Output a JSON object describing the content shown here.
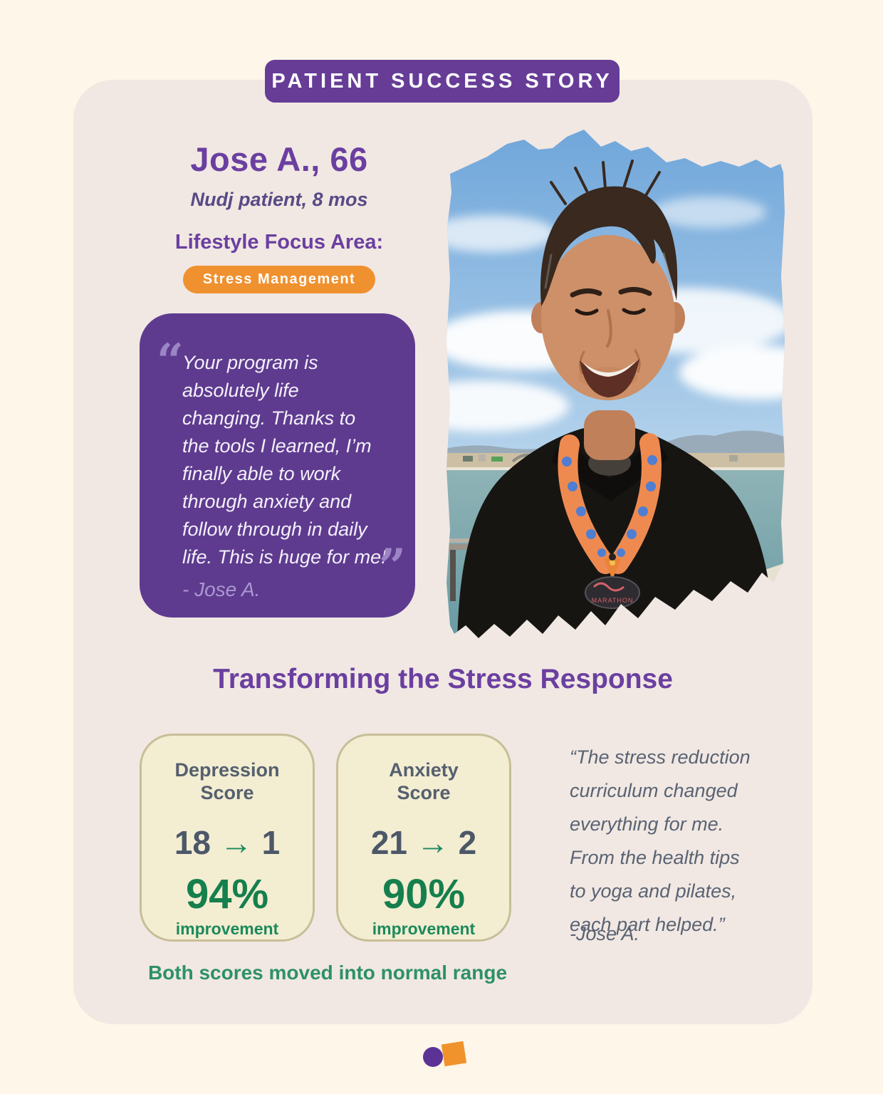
{
  "banner": {
    "label": "PATIENT SUCCESS STORY"
  },
  "patient": {
    "name": "Jose A., 66",
    "subtitle": "Nudj patient, 8 mos",
    "focus_label": "Lifestyle Focus Area:",
    "focus_badge": "Stress Management"
  },
  "testimonial": {
    "open_quote": "“",
    "close_quote": "”",
    "lines": [
      "Your program is",
      "absolutely life",
      "changing. Thanks to",
      "the tools I learned, I’m",
      "finally able to work",
      "through anxiety and",
      "follow through in daily",
      "life. This is huge for me!"
    ],
    "attribution": "- Jose A."
  },
  "photo": {
    "description": "Smiling man outdoors at a pier with blue sky, ocean and shoreline behind him, wearing a black fleece and an orange lanyard with blue palm trees holding a marathon medal",
    "medal_text": "MARATHON"
  },
  "results": {
    "heading": "Transforming the Stress Response",
    "cards": [
      {
        "title": "Depression\nScore",
        "title_line1": "Depression",
        "title_line2": "Score",
        "from": "18",
        "arrow": "→",
        "to": "1",
        "percent": "94%",
        "caption": "improvement"
      },
      {
        "title": "Anxiety\nScore",
        "title_line1": "Anxiety",
        "title_line2": "Score",
        "from": "21",
        "arrow": "→",
        "to": "2",
        "percent": "90%",
        "caption": "improvement"
      }
    ],
    "footnote": "Both scores moved into normal range"
  },
  "side_quote": {
    "lines": [
      "“The stress reduction",
      "curriculum changed",
      "everything for me.",
      "From the health tips",
      "to yoga and pilates,",
      "each part helped.”"
    ],
    "attribution": "-Jose A."
  },
  "colors": {
    "page_background": "#FEF6E8",
    "card_background": "#F1E8E3",
    "banner_purple": "#663C97",
    "headline_purple": "#6B3FA0",
    "quote_box_purple": "#5E3B8F",
    "quote_accent_purple": "#9C85C4",
    "badge_orange": "#F0912F",
    "score_card_cream": "#F3EDD2",
    "score_card_border": "#C8BE97",
    "slate_text": "#4C5868",
    "green_accent": "#1C8A5B",
    "green_footnote": "#2D9166"
  }
}
